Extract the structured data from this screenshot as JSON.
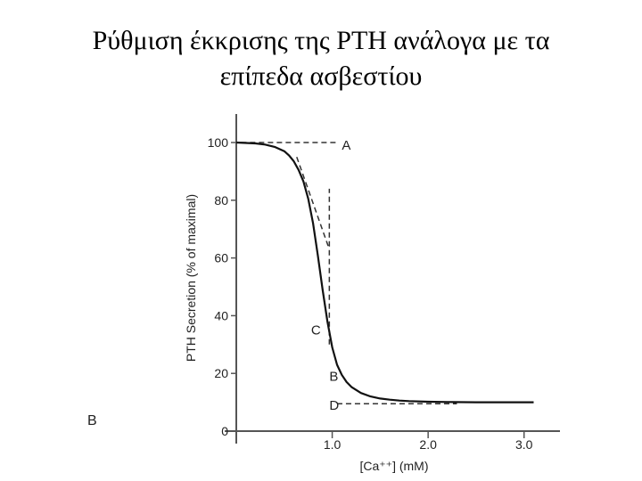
{
  "slide": {
    "title_line1": "Ρύθμιση έκκρισης της PTH ανάλογα με τα",
    "title_line2": "επίπεδα ασβεστίου",
    "figure_label": "B"
  },
  "chart_data": {
    "type": "line",
    "xlabel": "[Ca⁺⁺] (mM)",
    "ylabel": "PTH Secretion (% of maximal)",
    "xlim": [
      0,
      3.3
    ],
    "ylim": [
      0,
      100
    ],
    "x_ticks": [
      1.0,
      2.0,
      3.0
    ],
    "x_tick_labels": [
      "1.0",
      "2.0",
      "3.0"
    ],
    "y_ticks": [
      0,
      20,
      40,
      60,
      80,
      100
    ],
    "y_tick_labels": [
      "0",
      "20",
      "40",
      "60",
      "80",
      "100"
    ],
    "grid": false,
    "series": [
      {
        "x": [
          0.0,
          0.2,
          0.3,
          0.4,
          0.5,
          0.55,
          0.6,
          0.65,
          0.7,
          0.75,
          0.8,
          0.85,
          0.9,
          0.95,
          1.0,
          1.05,
          1.1,
          1.15,
          1.2,
          1.3,
          1.4,
          1.5,
          1.6,
          1.7,
          1.8,
          2.0,
          2.2,
          2.5,
          2.8,
          3.1
        ],
        "y": [
          100,
          99.7,
          99.3,
          98.5,
          97,
          95.5,
          93.5,
          90.5,
          86.5,
          80.5,
          72,
          61,
          49,
          38,
          29,
          23,
          19.5,
          17,
          15.3,
          13.2,
          12,
          11.3,
          10.9,
          10.6,
          10.4,
          10.2,
          10.1,
          10,
          10,
          10
        ]
      }
    ],
    "annotations": [
      {
        "label": "A",
        "type": "horizontal-dashed",
        "y": 100,
        "x_from": 0.05,
        "x_to": 1.05,
        "label_x": 1.1,
        "label_y": 99
      },
      {
        "label": "C",
        "type": "vertical-dashed",
        "x": 0.97,
        "y_from": 30,
        "y_to": 84,
        "label_x": 0.78,
        "label_y": 35
      },
      {
        "label": "B",
        "type": "point",
        "x": 0.97,
        "y": 19,
        "label_x": 0.97,
        "label_y": 19
      },
      {
        "label": "D",
        "type": "horizontal-dashed",
        "y": 9.5,
        "x_from": 1.05,
        "x_to": 2.3,
        "label_x": 0.97,
        "label_y": 9
      },
      {
        "type": "slope-dashed",
        "x_from": 0.63,
        "y_from": 95,
        "x_to": 0.97,
        "y_to": 63
      }
    ]
  }
}
